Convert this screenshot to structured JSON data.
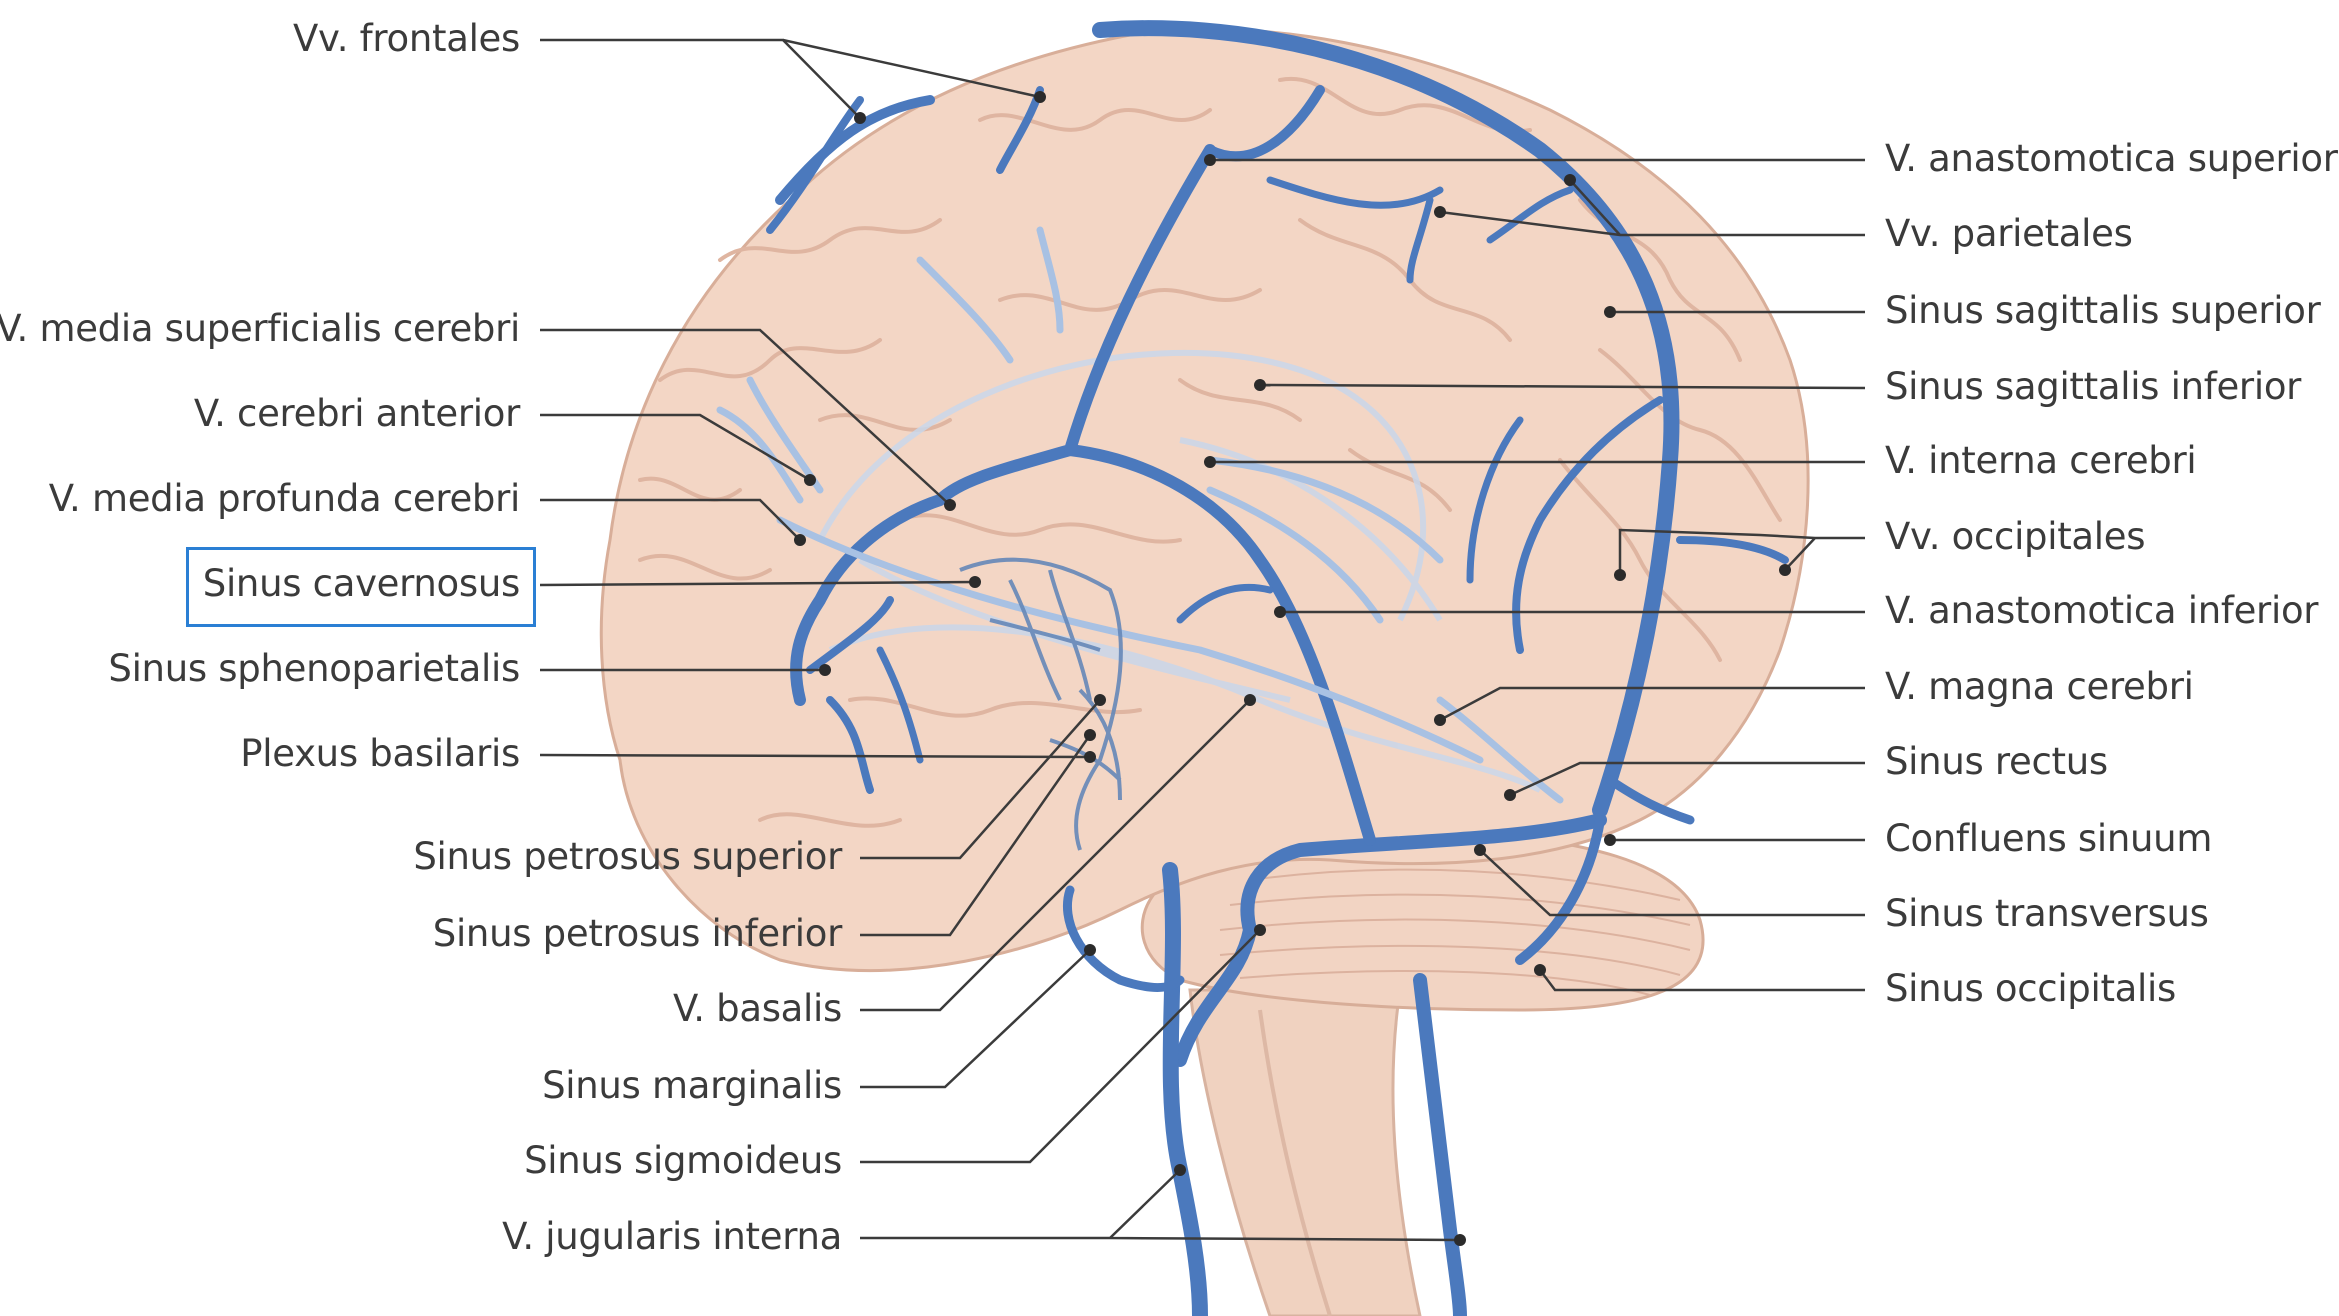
{
  "colors": {
    "brain": "#f2d3c3",
    "brain_shadow": "#dcae98",
    "vein": "#4b79bd",
    "vein_light": "#9fbbe0",
    "leader": "#3b3b3b",
    "highlight": "#2a7fd4",
    "label": "#3b3b3b"
  },
  "labels_left": [
    {
      "id": "vv-frontales",
      "text": "Vv. frontales"
    },
    {
      "id": "v-media-superficialis-cerebri",
      "text": "V. media superficialis cerebri"
    },
    {
      "id": "v-cerebri-anterior",
      "text": "V. cerebri anterior"
    },
    {
      "id": "v-media-profunda-cerebri",
      "text": "V. media profunda cerebri"
    },
    {
      "id": "sinus-cavernosus",
      "text": "Sinus cavernosus"
    },
    {
      "id": "sinus-sphenoparietalis",
      "text": "Sinus sphenoparietalis"
    },
    {
      "id": "plexus-basilaris",
      "text": "Plexus basilaris"
    },
    {
      "id": "sinus-petrosus-superior",
      "text": "Sinus petrosus superior"
    },
    {
      "id": "sinus-petrosus-inferior",
      "text": "Sinus petrosus inferior"
    },
    {
      "id": "v-basalis",
      "text": "V. basalis"
    },
    {
      "id": "sinus-marginalis",
      "text": "Sinus marginalis"
    },
    {
      "id": "sinus-sigmoideus",
      "text": "Sinus sigmoideus"
    },
    {
      "id": "v-jugularis-interna",
      "text": "V. jugularis interna"
    }
  ],
  "labels_right": [
    {
      "id": "v-anastomotica-superior",
      "text": "V. anastomotica superior"
    },
    {
      "id": "vv-parietales",
      "text": "Vv. parietales"
    },
    {
      "id": "sinus-sagittalis-superior",
      "text": "Sinus sagittalis superior"
    },
    {
      "id": "sinus-sagittalis-inferior",
      "text": "Sinus sagittalis inferior"
    },
    {
      "id": "v-interna-cerebri",
      "text": "V. interna cerebri"
    },
    {
      "id": "vv-occipitales",
      "text": "Vv. occipitales"
    },
    {
      "id": "v-anastomotica-inferior",
      "text": "V. anastomotica inferior"
    },
    {
      "id": "v-magna-cerebri",
      "text": "V. magna cerebri"
    },
    {
      "id": "sinus-rectus",
      "text": "Sinus rectus"
    },
    {
      "id": "confluens-sinuum",
      "text": "Confluens sinuum"
    },
    {
      "id": "sinus-transversus",
      "text": "Sinus transversus"
    },
    {
      "id": "sinus-occipitalis",
      "text": "Sinus occipitalis"
    }
  ],
  "highlighted_label": "sinus-cavernosus"
}
